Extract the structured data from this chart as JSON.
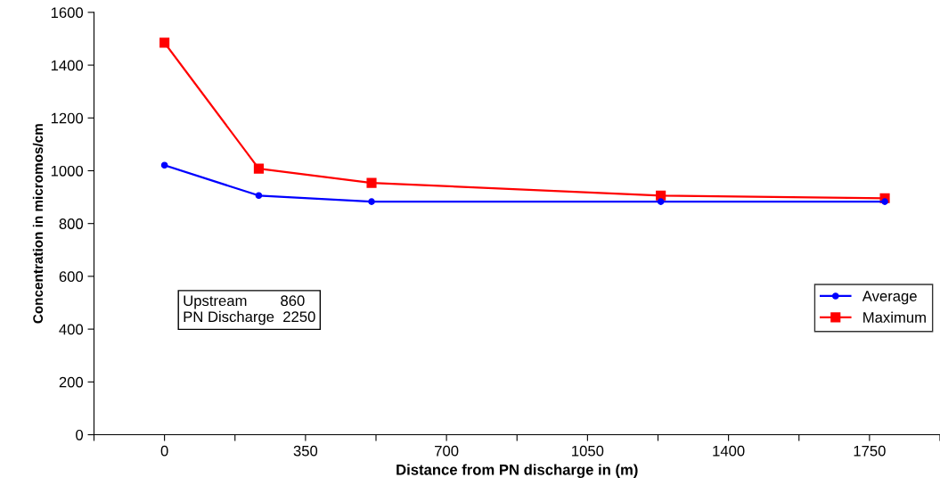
{
  "chart_data": {
    "type": "line",
    "xlabel": "Distance from PN discharge in (m)",
    "ylabel": "Concentration in micromos/cm",
    "x": [
      0,
      234,
      514,
      1232,
      1788
    ],
    "series": [
      {
        "name": "Average",
        "color": "#0000ff",
        "marker": "circle",
        "values": [
          1021,
          906,
          883,
          883,
          883
        ]
      },
      {
        "name": "Maximum",
        "color": "#ff0000",
        "marker": "square",
        "values": [
          1485,
          1008,
          954,
          906,
          896
        ]
      }
    ],
    "xlim": [
      -175,
      1925
    ],
    "xticks": [
      {
        "value": -175,
        "label": null
      },
      0,
      {
        "value": 175,
        "label": null
      },
      350,
      {
        "value": 525,
        "label": null
      },
      700,
      {
        "value": 875,
        "label": null
      },
      1050,
      {
        "value": 1225,
        "label": null
      },
      1400,
      {
        "value": 1575,
        "label": null
      },
      1750,
      {
        "value": 1925,
        "label": null
      }
    ],
    "ylim": [
      0,
      1600
    ],
    "yticks": [
      0,
      200,
      400,
      600,
      800,
      1000,
      1200,
      1400,
      1600
    ],
    "annotations": [
      "Upstream        860",
      "PN Discharge  2250"
    ],
    "grid": false,
    "legend": "right",
    "line_style": "solid"
  }
}
